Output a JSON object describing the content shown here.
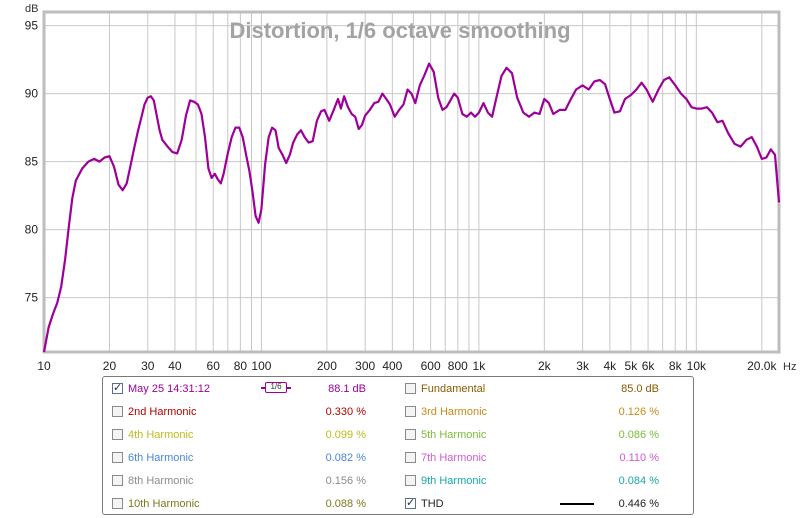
{
  "chart_data": {
    "type": "line",
    "title": "Distortion, 1/6 octave smoothing",
    "ylabel": "dB",
    "xlabel": "Hz",
    "x_scale": "log",
    "xlim": [
      10,
      24000
    ],
    "ylim": [
      71,
      96
    ],
    "grid": true,
    "y_ticks": [
      75,
      80,
      85,
      90,
      95
    ],
    "x_ticks": [
      {
        "value": 10,
        "label": "10"
      },
      {
        "value": 20,
        "label": "20"
      },
      {
        "value": 30,
        "label": "30"
      },
      {
        "value": 40,
        "label": "40"
      },
      {
        "value": 60,
        "label": "60"
      },
      {
        "value": 80,
        "label": "80"
      },
      {
        "value": 100,
        "label": "100"
      },
      {
        "value": 200,
        "label": "200"
      },
      {
        "value": 300,
        "label": "300"
      },
      {
        "value": 400,
        "label": "400"
      },
      {
        "value": 600,
        "label": "600"
      },
      {
        "value": 800,
        "label": "800"
      },
      {
        "value": 1000,
        "label": "1k"
      },
      {
        "value": 2000,
        "label": "2k"
      },
      {
        "value": 3000,
        "label": "3k"
      },
      {
        "value": 4000,
        "label": "4k"
      },
      {
        "value": 5000,
        "label": "5k"
      },
      {
        "value": 6000,
        "label": "6k"
      },
      {
        "value": 8000,
        "label": "8k"
      },
      {
        "value": 10000,
        "label": "10k"
      },
      {
        "value": 20000,
        "label": "20.0k"
      }
    ],
    "series": [
      {
        "color": "#9d0099",
        "points": [
          [
            10,
            71
          ],
          [
            10.5,
            72.8
          ],
          [
            11,
            73.8
          ],
          [
            11.5,
            74.6
          ],
          [
            12,
            75.8
          ],
          [
            12.5,
            77.8
          ],
          [
            13,
            80.2
          ],
          [
            13.5,
            82.3
          ],
          [
            14,
            83.6
          ],
          [
            15,
            84.5
          ],
          [
            16,
            85
          ],
          [
            17,
            85.2
          ],
          [
            18,
            85
          ],
          [
            19,
            85.3
          ],
          [
            20,
            85.4
          ],
          [
            21,
            84.6
          ],
          [
            22,
            83.3
          ],
          [
            23,
            82.9
          ],
          [
            24,
            83.4
          ],
          [
            25,
            84.7
          ],
          [
            26,
            86
          ],
          [
            27,
            87.2
          ],
          [
            28,
            88.2
          ],
          [
            29,
            89.2
          ],
          [
            30,
            89.7
          ],
          [
            31,
            89.8
          ],
          [
            32,
            89.5
          ],
          [
            33,
            88.4
          ],
          [
            34,
            87.3
          ],
          [
            35,
            86.6
          ],
          [
            37,
            86.1
          ],
          [
            39,
            85.7
          ],
          [
            41,
            85.6
          ],
          [
            43,
            86.6
          ],
          [
            45,
            88.4
          ],
          [
            47,
            89.5
          ],
          [
            49,
            89.4
          ],
          [
            51,
            89.2
          ],
          [
            53,
            88.5
          ],
          [
            55,
            86.8
          ],
          [
            57,
            84.5
          ],
          [
            59,
            83.8
          ],
          [
            61,
            84.1
          ],
          [
            63,
            83.7
          ],
          [
            65,
            83.4
          ],
          [
            67,
            84.1
          ],
          [
            70,
            85.6
          ],
          [
            73,
            86.8
          ],
          [
            76,
            87.5
          ],
          [
            79,
            87.5
          ],
          [
            82,
            86.8
          ],
          [
            85,
            85.5
          ],
          [
            88,
            84.3
          ],
          [
            91,
            82.8
          ],
          [
            94,
            81
          ],
          [
            97,
            80.5
          ],
          [
            100,
            81.5
          ],
          [
            104,
            84.8
          ],
          [
            108,
            86.8
          ],
          [
            112,
            87.5
          ],
          [
            116,
            87.3
          ],
          [
            120,
            86
          ],
          [
            125,
            85.5
          ],
          [
            130,
            84.9
          ],
          [
            135,
            85.5
          ],
          [
            140,
            86.4
          ],
          [
            146,
            87
          ],
          [
            152,
            87.3
          ],
          [
            158,
            86.8
          ],
          [
            165,
            86.4
          ],
          [
            172,
            86.5
          ],
          [
            180,
            88
          ],
          [
            188,
            88.7
          ],
          [
            195,
            88.8
          ],
          [
            205,
            88
          ],
          [
            215,
            88.8
          ],
          [
            225,
            89.6
          ],
          [
            232,
            88.9
          ],
          [
            240,
            89.8
          ],
          [
            250,
            89
          ],
          [
            260,
            88.5
          ],
          [
            270,
            88.3
          ],
          [
            280,
            87.4
          ],
          [
            290,
            87.7
          ],
          [
            300,
            88.4
          ],
          [
            315,
            88.8
          ],
          [
            330,
            89.3
          ],
          [
            345,
            89.4
          ],
          [
            360,
            90
          ],
          [
            375,
            89.6
          ],
          [
            390,
            89.2
          ],
          [
            410,
            88.3
          ],
          [
            430,
            88.8
          ],
          [
            450,
            89.2
          ],
          [
            470,
            90.3
          ],
          [
            490,
            90
          ],
          [
            510,
            89.3
          ],
          [
            535,
            90.6
          ],
          [
            560,
            91.3
          ],
          [
            590,
            92.2
          ],
          [
            620,
            91.6
          ],
          [
            650,
            89.7
          ],
          [
            680,
            88.8
          ],
          [
            710,
            89
          ],
          [
            740,
            89.5
          ],
          [
            770,
            90
          ],
          [
            800,
            89.7
          ],
          [
            840,
            88.5
          ],
          [
            880,
            88.3
          ],
          [
            920,
            88.6
          ],
          [
            960,
            88.3
          ],
          [
            1000,
            88.6
          ],
          [
            1050,
            89.3
          ],
          [
            1100,
            88.6
          ],
          [
            1150,
            88.3
          ],
          [
            1200,
            89.6
          ],
          [
            1270,
            91.3
          ],
          [
            1340,
            91.9
          ],
          [
            1420,
            91.5
          ],
          [
            1500,
            89.7
          ],
          [
            1600,
            88.6
          ],
          [
            1700,
            88.3
          ],
          [
            1800,
            88.6
          ],
          [
            1900,
            88.5
          ],
          [
            2000,
            89.6
          ],
          [
            2100,
            89.3
          ],
          [
            2200,
            88.5
          ],
          [
            2350,
            88.8
          ],
          [
            2500,
            88.8
          ],
          [
            2650,
            89.6
          ],
          [
            2800,
            90.3
          ],
          [
            3000,
            90.6
          ],
          [
            3200,
            90.3
          ],
          [
            3400,
            90.9
          ],
          [
            3600,
            91
          ],
          [
            3800,
            90.7
          ],
          [
            4000,
            89.6
          ],
          [
            4200,
            88.6
          ],
          [
            4450,
            88.7
          ],
          [
            4700,
            89.6
          ],
          [
            5000,
            89.9
          ],
          [
            5300,
            90.3
          ],
          [
            5600,
            90.8
          ],
          [
            5900,
            90.3
          ],
          [
            6300,
            89.4
          ],
          [
            6700,
            90.3
          ],
          [
            7100,
            91
          ],
          [
            7500,
            91.2
          ],
          [
            8000,
            90.6
          ],
          [
            8500,
            90
          ],
          [
            9000,
            89.6
          ],
          [
            9500,
            89
          ],
          [
            10000,
            88.9
          ],
          [
            10600,
            88.9
          ],
          [
            11200,
            89
          ],
          [
            11800,
            88.6
          ],
          [
            12500,
            87.9
          ],
          [
            13200,
            88
          ],
          [
            14000,
            87.1
          ],
          [
            15000,
            86.3
          ],
          [
            16000,
            86.1
          ],
          [
            17000,
            86.6
          ],
          [
            18000,
            86.8
          ],
          [
            19000,
            86.1
          ],
          [
            20000,
            85.2
          ],
          [
            21000,
            85.3
          ],
          [
            22000,
            85.9
          ],
          [
            23000,
            85.5
          ],
          [
            24000,
            82
          ]
        ]
      }
    ]
  },
  "legend": {
    "rows": [
      {
        "left": {
          "label": "May 25 14:31:12",
          "value": "88.1 dB",
          "checked": true,
          "color": "#9d0099",
          "smoothing": "1/6"
        },
        "right": {
          "label": "Fundamental",
          "value": "85.0 dB",
          "checked": false,
          "color": "#8a5a00"
        }
      },
      {
        "left": {
          "label": "2nd Harmonic",
          "value": "0.330 %",
          "checked": false,
          "color": "#b40000"
        },
        "right": {
          "label": "3rd Harmonic",
          "value": "0.126 %",
          "checked": false,
          "color": "#c88a1a"
        }
      },
      {
        "left": {
          "label": "4th Harmonic",
          "value": "0.099 %",
          "checked": false,
          "color": "#bcbc1c"
        },
        "right": {
          "label": "5th Harmonic",
          "value": "0.086 %",
          "checked": false,
          "color": "#7cbc3c"
        }
      },
      {
        "left": {
          "label": "6th Harmonic",
          "value": "0.082 %",
          "checked": false,
          "color": "#4a86d8"
        },
        "right": {
          "label": "7th Harmonic",
          "value": "0.110 %",
          "checked": false,
          "color": "#d05ad8"
        }
      },
      {
        "left": {
          "label": "8th Harmonic",
          "value": "0.156 %",
          "checked": false,
          "color": "#8c8c8c"
        },
        "right": {
          "label": "9th Harmonic",
          "value": "0.084 %",
          "checked": false,
          "color": "#1aa7a7"
        }
      },
      {
        "left": {
          "label": "10th Harmonic",
          "value": "0.088 %",
          "checked": false,
          "color": "#7a7a1a"
        },
        "right": {
          "label": "THD",
          "value": "0.446 %",
          "checked": true,
          "color": "#222222"
        }
      }
    ]
  }
}
